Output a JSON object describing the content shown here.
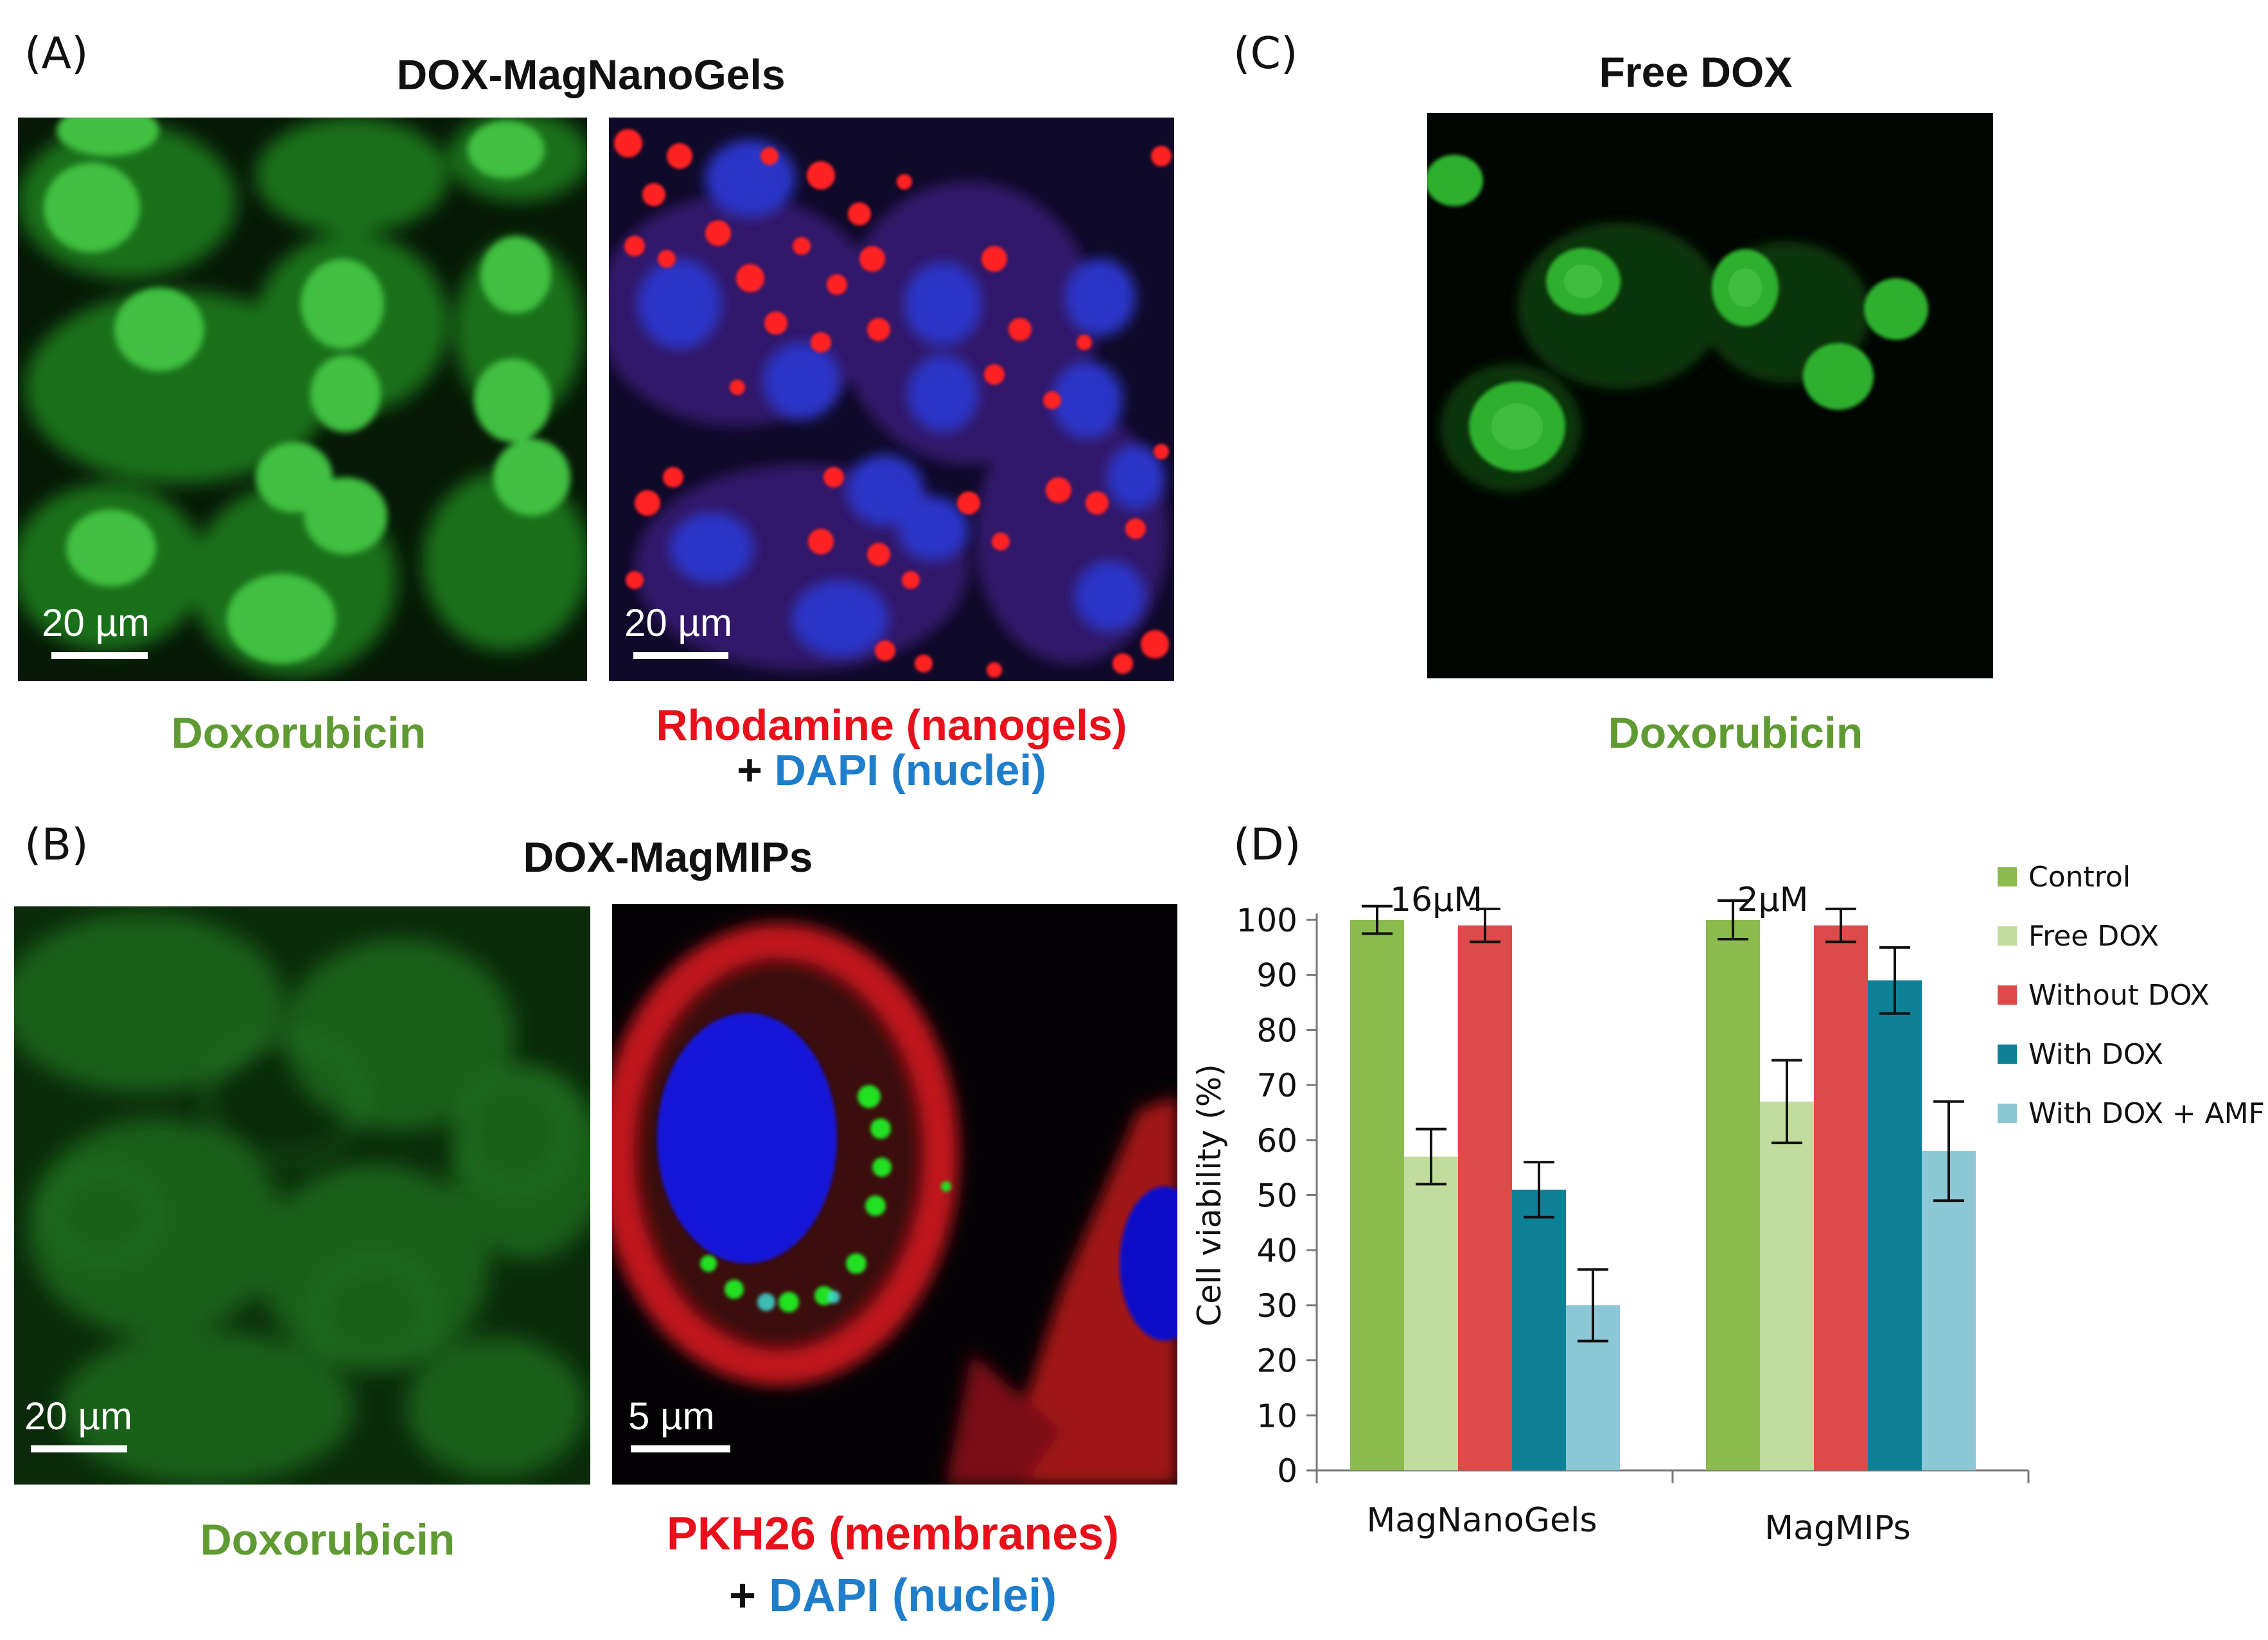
{
  "panels": {
    "a": {
      "letter": "(A)",
      "title": "DOX-MagNanoGels",
      "img1_scale": "20 µm",
      "img2_scale": "20 µm",
      "caption_left": "Doxorubicin",
      "caption_right_red": "Rhodamine (nanogels)",
      "caption_right_plus": "+",
      "caption_right_blue": "DAPI (nuclei)"
    },
    "b": {
      "letter": "(B)",
      "title": "DOX-MagMIPs",
      "img1_scale": "20 µm",
      "img2_scale": "5 µm",
      "caption_left": "Doxorubicin",
      "caption_right_red": "PKH26 (membranes)",
      "caption_right_plus": "+",
      "caption_right_blue": "DAPI (nuclei)"
    },
    "c": {
      "letter": "(C)",
      "title": "Free DOX",
      "caption": "Doxorubicin"
    },
    "d": {
      "letter": "(D)"
    }
  },
  "chart_data": {
    "type": "bar",
    "ylabel": "Cell viability (%)",
    "ylim": [
      0,
      100
    ],
    "yticks": [
      0,
      10,
      20,
      30,
      40,
      50,
      60,
      70,
      80,
      90,
      100
    ],
    "categories": [
      "MagNanoGels",
      "MagMIPs"
    ],
    "group_annotations": [
      "16µM",
      "2µM"
    ],
    "legend_position": "right",
    "series": [
      {
        "name": "Control",
        "color": "#8bbb4f",
        "values": [
          100,
          100
        ],
        "errors": [
          2.5,
          3.5
        ]
      },
      {
        "name": "Free DOX",
        "color": "#c0dd9e",
        "values": [
          57,
          67
        ],
        "errors": [
          5,
          7.5
        ]
      },
      {
        "name": "Without DOX",
        "color": "#dd4a4a",
        "values": [
          99,
          99
        ],
        "errors": [
          3,
          3
        ]
      },
      {
        "name": "With DOX",
        "color": "#0f8197",
        "values": [
          51,
          89
        ],
        "errors": [
          5,
          6
        ]
      },
      {
        "name": "With DOX + AMF",
        "color": "#8bc7d4",
        "values": [
          30,
          58
        ],
        "errors": [
          6.5,
          9
        ]
      }
    ]
  }
}
